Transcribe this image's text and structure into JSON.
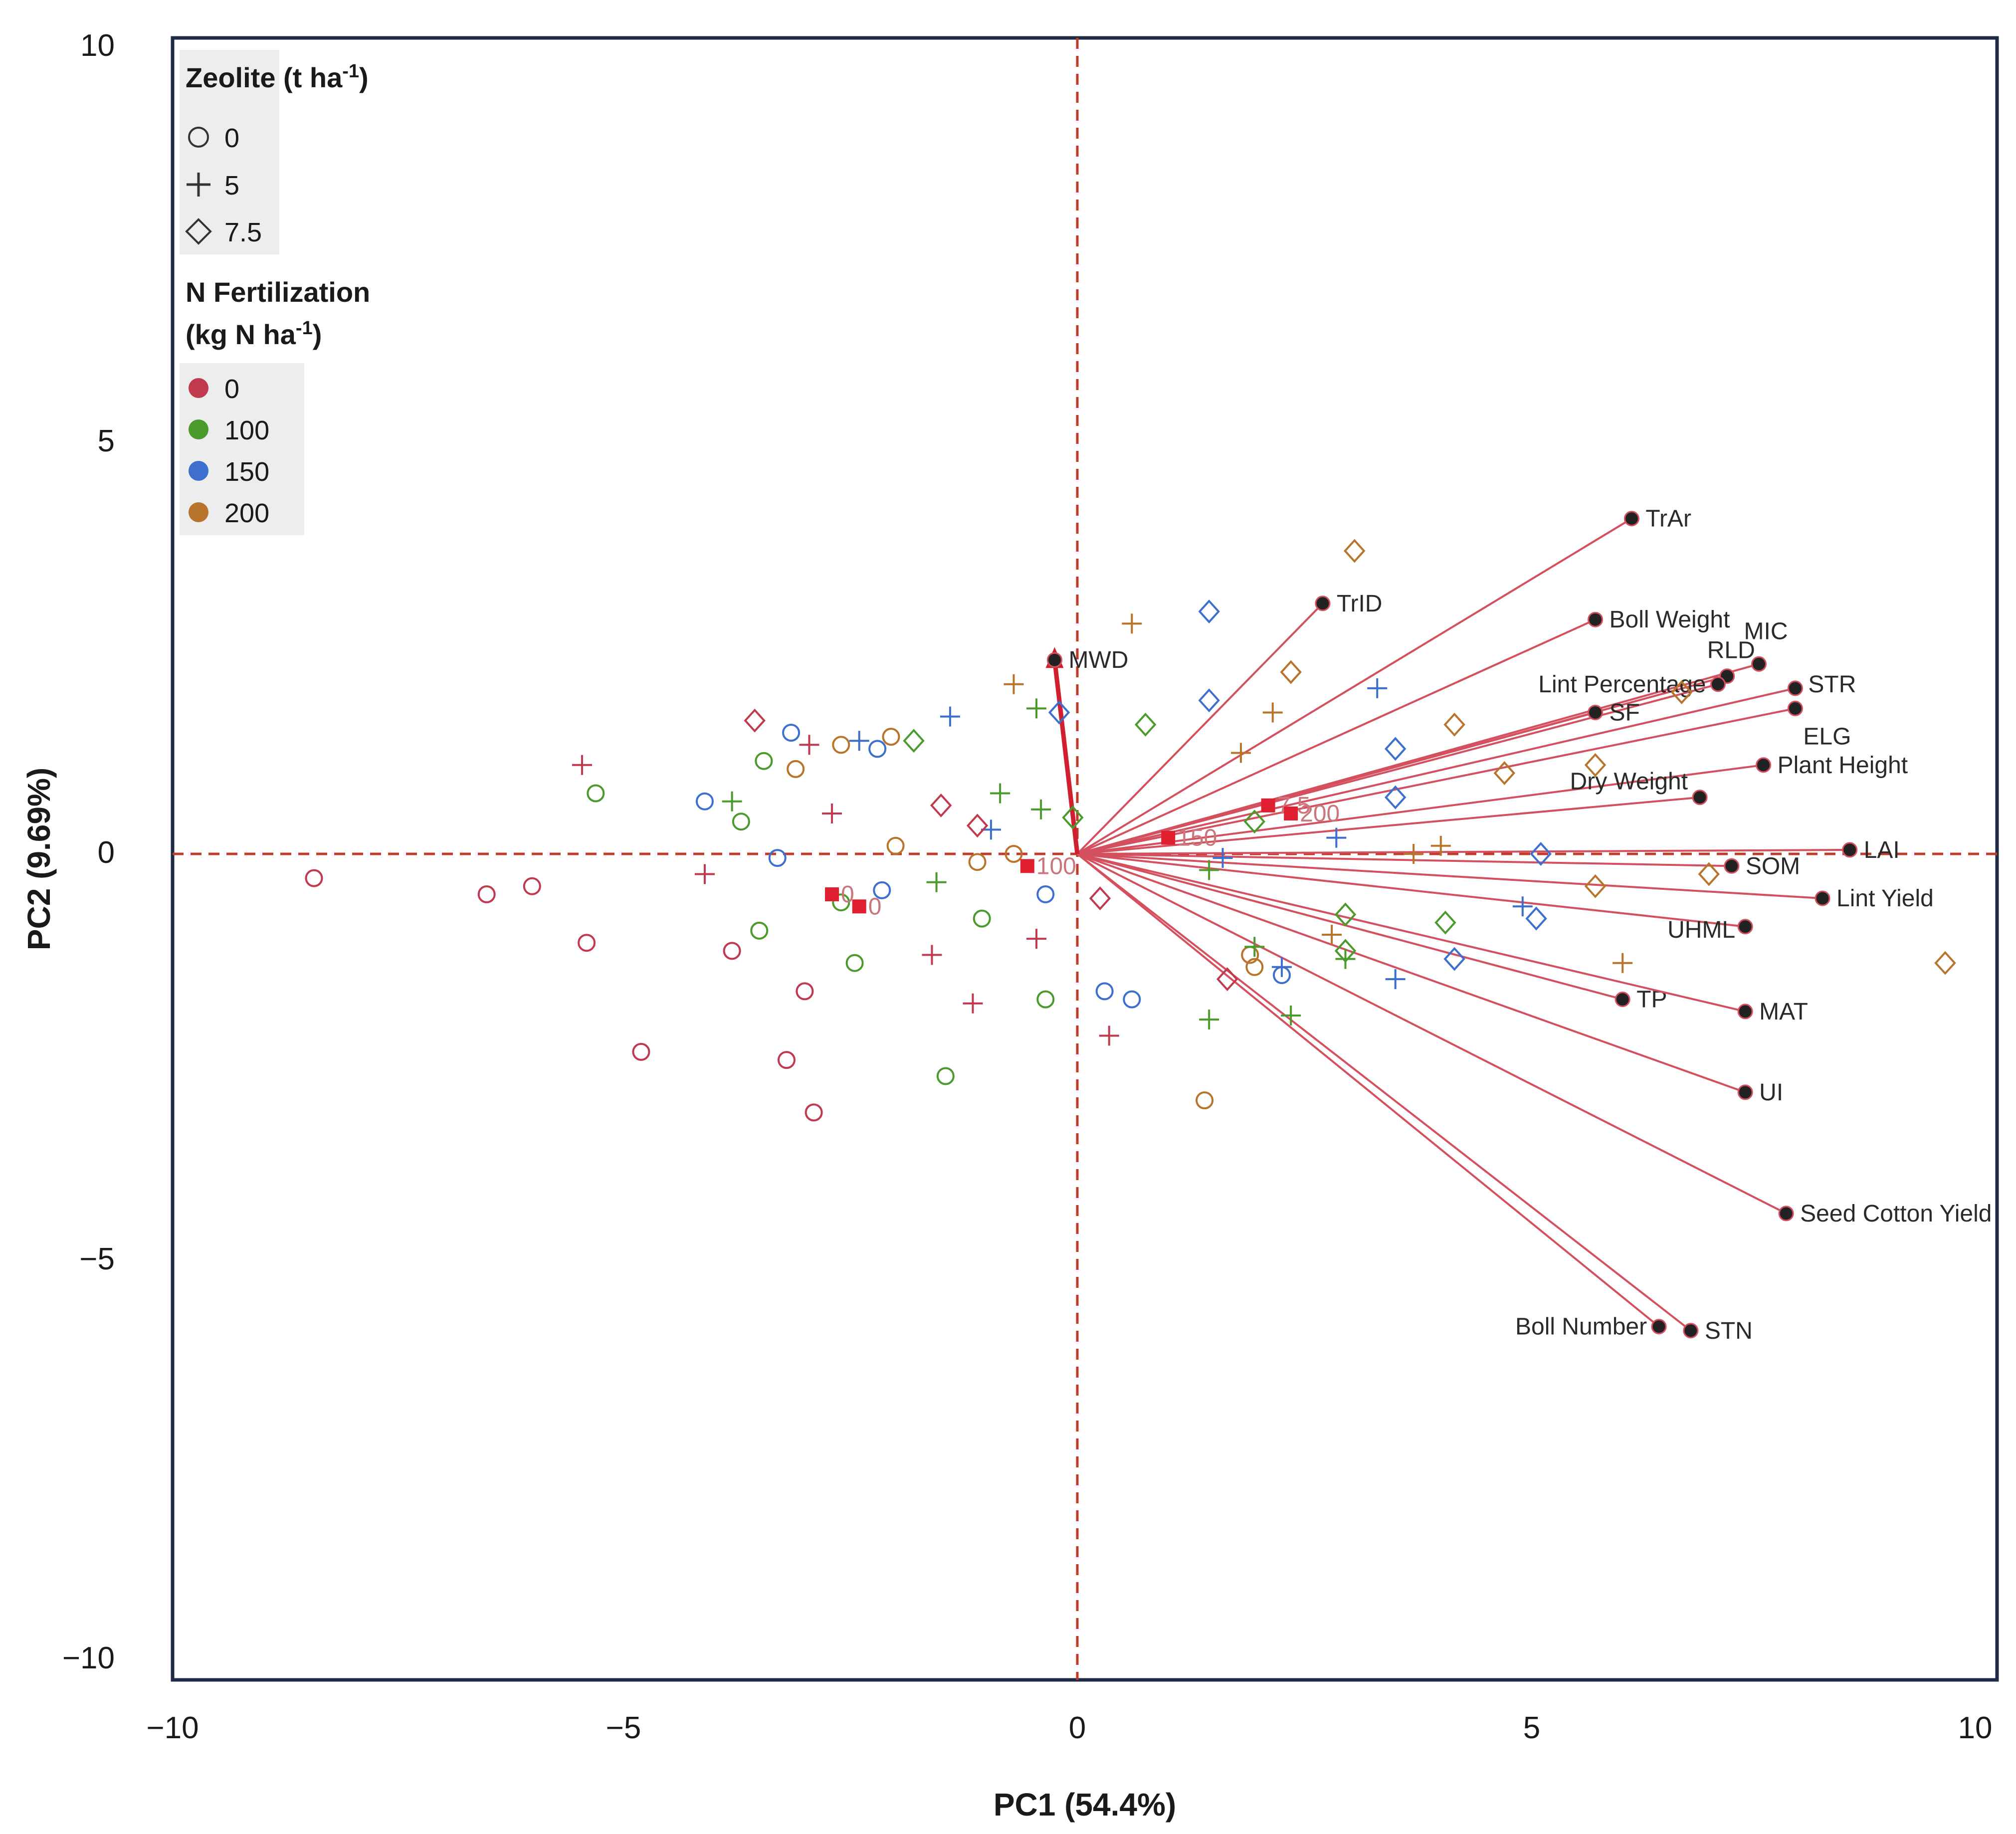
{
  "chart_data": {
    "type": "scatter",
    "subtype": "pca-biplot",
    "xlabel": "PC1 (54.4%)",
    "ylabel": "PC2 (9.69%)",
    "xlim": [
      -10,
      10
    ],
    "ylim": [
      -10,
      10
    ],
    "x_ticks": [
      {
        "value": -10,
        "label": "−10"
      },
      {
        "value": -5,
        "label": "−5"
      },
      {
        "value": 0,
        "label": "0"
      },
      {
        "value": 5,
        "label": "5"
      },
      {
        "value": 10,
        "label": "10"
      }
    ],
    "y_ticks": [
      {
        "value": 10,
        "label": "10"
      },
      {
        "value": 5,
        "label": "5"
      },
      {
        "value": 0,
        "label": "0"
      },
      {
        "value": -5,
        "label": "−5"
      },
      {
        "value": -10,
        "label": "−10"
      }
    ],
    "zero_lines": true,
    "colors": {
      "frame": "#1f2a44",
      "arrow": "#d4505e",
      "zero_line": "#c0392b",
      "n0": "#c0394f",
      "n100": "#4a9a2c",
      "n150": "#3d6fce",
      "n200": "#b8742a",
      "dot": "#222222",
      "centroid": "#e02030"
    },
    "legend_zeolite": {
      "title_main": "Zeolite (t ha",
      "title_sup": "-1",
      "title_end": ")",
      "items": [
        {
          "label": "0",
          "shape": "circle"
        },
        {
          "label": "5",
          "shape": "plus"
        },
        {
          "label": "7.5",
          "shape": "diamond"
        }
      ]
    },
    "legend_nitrogen": {
      "title_line1": "N Fertilization",
      "title_line2_main": "(kg N ha",
      "title_line2_sup": "-1",
      "title_line2_end": ")",
      "items": [
        {
          "label": "0",
          "color": "#c0394f"
        },
        {
          "label": "100",
          "color": "#4a9a2c"
        },
        {
          "label": "150",
          "color": "#3d6fce"
        },
        {
          "label": "200",
          "color": "#b8742a"
        }
      ]
    },
    "loadings": [
      {
        "name": "TrAr",
        "x": 6.1,
        "y": 4.15,
        "label_pos": "right"
      },
      {
        "name": "TrID",
        "x": 2.7,
        "y": 3.1,
        "label_pos": "right"
      },
      {
        "name": "Boll Weight",
        "x": 5.7,
        "y": 2.9,
        "label_pos": "right"
      },
      {
        "name": "MIC",
        "x": 7.5,
        "y": 2.35,
        "label_pos": "above"
      },
      {
        "name": "RLD",
        "x": 7.15,
        "y": 2.2,
        "label_pos": "above-left"
      },
      {
        "name": "STR",
        "x": 7.9,
        "y": 2.05,
        "label_pos": "right-up"
      },
      {
        "name": "Lint Percentage",
        "x": 7.05,
        "y": 2.1,
        "label_pos": "left"
      },
      {
        "name": "ELG",
        "x": 7.9,
        "y": 1.8,
        "label_pos": "below-right"
      },
      {
        "name": "SF",
        "x": 5.7,
        "y": 1.75,
        "label_pos": "right"
      },
      {
        "name": "Plant Height",
        "x": 7.55,
        "y": 1.1,
        "label_pos": "right"
      },
      {
        "name": "Dry Weight",
        "x": 6.85,
        "y": 0.7,
        "label_pos": "left-up"
      },
      {
        "name": "LAI",
        "x": 8.5,
        "y": 0.05,
        "label_pos": "right"
      },
      {
        "name": "SOM",
        "x": 7.2,
        "y": -0.15,
        "label_pos": "right"
      },
      {
        "name": "Lint Yield",
        "x": 8.2,
        "y": -0.55,
        "label_pos": "right"
      },
      {
        "name": "UHML",
        "x": 7.35,
        "y": -0.9,
        "label_pos": "left-below"
      },
      {
        "name": "TP",
        "x": 6.0,
        "y": -1.8,
        "label_pos": "right"
      },
      {
        "name": "MAT",
        "x": 7.35,
        "y": -1.95,
        "label_pos": "right"
      },
      {
        "name": "UI",
        "x": 7.35,
        "y": -2.95,
        "label_pos": "right"
      },
      {
        "name": "Seed Cotton Yield",
        "x": 7.8,
        "y": -4.45,
        "label_pos": "right"
      },
      {
        "name": "Boll Number",
        "x": 6.4,
        "y": -5.85,
        "label_pos": "left"
      },
      {
        "name": "STN",
        "x": 6.75,
        "y": -5.9,
        "label_pos": "right"
      },
      {
        "name": "MWD",
        "x": -0.25,
        "y": 2.4,
        "label_pos": "right"
      }
    ],
    "centroids": [
      {
        "label": "0",
        "x": -2.7,
        "y": -0.5
      },
      {
        "label": "0",
        "x": -2.4,
        "y": -0.65
      },
      {
        "label": "100",
        "x": -0.55,
        "y": -0.15
      },
      {
        "label": "150",
        "x": 1.0,
        "y": 0.2
      },
      {
        "label": "7.5",
        "x": 2.1,
        "y": 0.6
      },
      {
        "label": "200",
        "x": 2.35,
        "y": 0.5
      }
    ],
    "scores": [
      {
        "x": -8.4,
        "y": -0.3,
        "zeolite": "0",
        "n": "0"
      },
      {
        "x": -6.5,
        "y": -0.5,
        "zeolite": "0",
        "n": "0"
      },
      {
        "x": -6.0,
        "y": -0.4,
        "zeolite": "0",
        "n": "0"
      },
      {
        "x": -5.4,
        "y": -1.1,
        "zeolite": "0",
        "n": "0"
      },
      {
        "x": -4.8,
        "y": -2.45,
        "zeolite": "0",
        "n": "0"
      },
      {
        "x": -3.8,
        "y": -1.2,
        "zeolite": "0",
        "n": "0"
      },
      {
        "x": -3.2,
        "y": -2.55,
        "zeolite": "0",
        "n": "0"
      },
      {
        "x": -3.0,
        "y": -1.7,
        "zeolite": "0",
        "n": "0"
      },
      {
        "x": -2.9,
        "y": -3.2,
        "zeolite": "0",
        "n": "0"
      },
      {
        "x": -5.3,
        "y": 0.75,
        "zeolite": "0",
        "n": "100"
      },
      {
        "x": -3.7,
        "y": 0.4,
        "zeolite": "0",
        "n": "100"
      },
      {
        "x": -3.45,
        "y": 1.15,
        "zeolite": "0",
        "n": "100"
      },
      {
        "x": -3.5,
        "y": -0.95,
        "zeolite": "0",
        "n": "100"
      },
      {
        "x": -2.6,
        "y": -0.6,
        "zeolite": "0",
        "n": "100"
      },
      {
        "x": -2.45,
        "y": -1.35,
        "zeolite": "0",
        "n": "100"
      },
      {
        "x": -1.45,
        "y": -2.75,
        "zeolite": "0",
        "n": "100"
      },
      {
        "x": -1.05,
        "y": -0.8,
        "zeolite": "0",
        "n": "100"
      },
      {
        "x": -0.35,
        "y": -1.8,
        "zeolite": "0",
        "n": "100"
      },
      {
        "x": -4.1,
        "y": 0.65,
        "zeolite": "0",
        "n": "150"
      },
      {
        "x": -3.3,
        "y": -0.05,
        "zeolite": "0",
        "n": "150"
      },
      {
        "x": -3.15,
        "y": 1.5,
        "zeolite": "0",
        "n": "150"
      },
      {
        "x": -2.2,
        "y": 1.3,
        "zeolite": "0",
        "n": "150"
      },
      {
        "x": -2.15,
        "y": -0.45,
        "zeolite": "0",
        "n": "150"
      },
      {
        "x": -0.35,
        "y": -0.5,
        "zeolite": "0",
        "n": "150"
      },
      {
        "x": 0.3,
        "y": -1.7,
        "zeolite": "0",
        "n": "150"
      },
      {
        "x": 0.6,
        "y": -1.8,
        "zeolite": "0",
        "n": "150"
      },
      {
        "x": 2.25,
        "y": -1.5,
        "zeolite": "0",
        "n": "150"
      },
      {
        "x": -3.1,
        "y": 1.05,
        "zeolite": "0",
        "n": "200"
      },
      {
        "x": -2.6,
        "y": 1.35,
        "zeolite": "0",
        "n": "200"
      },
      {
        "x": -2.05,
        "y": 1.45,
        "zeolite": "0",
        "n": "200"
      },
      {
        "x": -2.0,
        "y": 0.1,
        "zeolite": "0",
        "n": "200"
      },
      {
        "x": -1.1,
        "y": -0.1,
        "zeolite": "0",
        "n": "200"
      },
      {
        "x": -0.7,
        "y": 0.0,
        "zeolite": "0",
        "n": "200"
      },
      {
        "x": 1.4,
        "y": -3.05,
        "zeolite": "0",
        "n": "200"
      },
      {
        "x": 1.9,
        "y": -1.25,
        "zeolite": "0",
        "n": "200"
      },
      {
        "x": 1.95,
        "y": -1.4,
        "zeolite": "0",
        "n": "200"
      },
      {
        "x": -5.45,
        "y": 1.1,
        "zeolite": "5",
        "n": "0"
      },
      {
        "x": -4.1,
        "y": -0.25,
        "zeolite": "5",
        "n": "0"
      },
      {
        "x": -2.95,
        "y": 1.35,
        "zeolite": "5",
        "n": "0"
      },
      {
        "x": -2.7,
        "y": 0.5,
        "zeolite": "5",
        "n": "0"
      },
      {
        "x": -1.6,
        "y": -1.25,
        "zeolite": "5",
        "n": "0"
      },
      {
        "x": -1.15,
        "y": -1.85,
        "zeolite": "5",
        "n": "0"
      },
      {
        "x": -0.45,
        "y": -1.05,
        "zeolite": "5",
        "n": "0"
      },
      {
        "x": 0.35,
        "y": -2.25,
        "zeolite": "5",
        "n": "0"
      },
      {
        "x": -3.8,
        "y": 0.65,
        "zeolite": "5",
        "n": "100"
      },
      {
        "x": -1.55,
        "y": -0.35,
        "zeolite": "5",
        "n": "100"
      },
      {
        "x": -0.85,
        "y": 0.75,
        "zeolite": "5",
        "n": "100"
      },
      {
        "x": -0.45,
        "y": 1.8,
        "zeolite": "5",
        "n": "100"
      },
      {
        "x": -0.4,
        "y": 0.55,
        "zeolite": "5",
        "n": "100"
      },
      {
        "x": 1.45,
        "y": -0.2,
        "zeolite": "5",
        "n": "100"
      },
      {
        "x": 1.45,
        "y": -2.05,
        "zeolite": "5",
        "n": "100"
      },
      {
        "x": 1.95,
        "y": -1.15,
        "zeolite": "5",
        "n": "100"
      },
      {
        "x": 2.35,
        "y": -2.0,
        "zeolite": "5",
        "n": "100"
      },
      {
        "x": 2.95,
        "y": -1.3,
        "zeolite": "5",
        "n": "100"
      },
      {
        "x": -2.4,
        "y": 1.4,
        "zeolite": "5",
        "n": "150"
      },
      {
        "x": -1.4,
        "y": 1.7,
        "zeolite": "5",
        "n": "150"
      },
      {
        "x": -0.95,
        "y": 0.3,
        "zeolite": "5",
        "n": "150"
      },
      {
        "x": 1.6,
        "y": -0.05,
        "zeolite": "5",
        "n": "150"
      },
      {
        "x": 2.25,
        "y": -1.4,
        "zeolite": "5",
        "n": "150"
      },
      {
        "x": 2.85,
        "y": 0.2,
        "zeolite": "5",
        "n": "150"
      },
      {
        "x": 3.3,
        "y": 2.05,
        "zeolite": "5",
        "n": "150"
      },
      {
        "x": 3.5,
        "y": -1.55,
        "zeolite": "5",
        "n": "150"
      },
      {
        "x": 4.9,
        "y": -0.65,
        "zeolite": "5",
        "n": "150"
      },
      {
        "x": -0.7,
        "y": 2.1,
        "zeolite": "5",
        "n": "200"
      },
      {
        "x": 0.6,
        "y": 2.85,
        "zeolite": "5",
        "n": "200"
      },
      {
        "x": 1.8,
        "y": 1.25,
        "zeolite": "5",
        "n": "200"
      },
      {
        "x": 2.15,
        "y": 1.75,
        "zeolite": "5",
        "n": "200"
      },
      {
        "x": 2.8,
        "y": -1.0,
        "zeolite": "5",
        "n": "200"
      },
      {
        "x": 3.7,
        "y": 0.0,
        "zeolite": "5",
        "n": "200"
      },
      {
        "x": 4.0,
        "y": 0.1,
        "zeolite": "5",
        "n": "200"
      },
      {
        "x": 6.0,
        "y": -1.35,
        "zeolite": "5",
        "n": "200"
      },
      {
        "x": -3.55,
        "y": 1.65,
        "zeolite": "7.5",
        "n": "0"
      },
      {
        "x": -1.5,
        "y": 0.6,
        "zeolite": "7.5",
        "n": "0"
      },
      {
        "x": -1.1,
        "y": 0.35,
        "zeolite": "7.5",
        "n": "0"
      },
      {
        "x": 0.25,
        "y": -0.55,
        "zeolite": "7.5",
        "n": "0"
      },
      {
        "x": 1.65,
        "y": -1.55,
        "zeolite": "7.5",
        "n": "0"
      },
      {
        "x": -1.8,
        "y": 1.4,
        "zeolite": "7.5",
        "n": "100"
      },
      {
        "x": -0.05,
        "y": 0.45,
        "zeolite": "7.5",
        "n": "100"
      },
      {
        "x": 0.75,
        "y": 1.6,
        "zeolite": "7.5",
        "n": "100"
      },
      {
        "x": 1.95,
        "y": 0.4,
        "zeolite": "7.5",
        "n": "100"
      },
      {
        "x": 2.95,
        "y": -0.75,
        "zeolite": "7.5",
        "n": "100"
      },
      {
        "x": 2.95,
        "y": -1.2,
        "zeolite": "7.5",
        "n": "100"
      },
      {
        "x": 4.05,
        "y": -0.85,
        "zeolite": "7.5",
        "n": "100"
      },
      {
        "x": -0.2,
        "y": 1.75,
        "zeolite": "7.5",
        "n": "150"
      },
      {
        "x": 1.45,
        "y": 3.0,
        "zeolite": "7.5",
        "n": "150"
      },
      {
        "x": 1.45,
        "y": 1.9,
        "zeolite": "7.5",
        "n": "150"
      },
      {
        "x": 3.5,
        "y": 1.3,
        "zeolite": "7.5",
        "n": "150"
      },
      {
        "x": 3.5,
        "y": 0.7,
        "zeolite": "7.5",
        "n": "150"
      },
      {
        "x": 4.15,
        "y": -1.3,
        "zeolite": "7.5",
        "n": "150"
      },
      {
        "x": 5.05,
        "y": -0.8,
        "zeolite": "7.5",
        "n": "150"
      },
      {
        "x": 5.1,
        "y": 0.0,
        "zeolite": "7.5",
        "n": "150"
      },
      {
        "x": 3.05,
        "y": 3.75,
        "zeolite": "7.5",
        "n": "200"
      },
      {
        "x": 2.35,
        "y": 2.25,
        "zeolite": "7.5",
        "n": "200"
      },
      {
        "x": 4.15,
        "y": 1.6,
        "zeolite": "7.5",
        "n": "200"
      },
      {
        "x": 4.7,
        "y": 1.0,
        "zeolite": "7.5",
        "n": "200"
      },
      {
        "x": 5.7,
        "y": 1.1,
        "zeolite": "7.5",
        "n": "200"
      },
      {
        "x": 5.7,
        "y": -0.4,
        "zeolite": "7.5",
        "n": "200"
      },
      {
        "x": 6.65,
        "y": 2.0,
        "zeolite": "7.5",
        "n": "200"
      },
      {
        "x": 6.95,
        "y": -0.25,
        "zeolite": "7.5",
        "n": "200"
      },
      {
        "x": 9.55,
        "y": -1.35,
        "zeolite": "7.5",
        "n": "200"
      }
    ]
  }
}
